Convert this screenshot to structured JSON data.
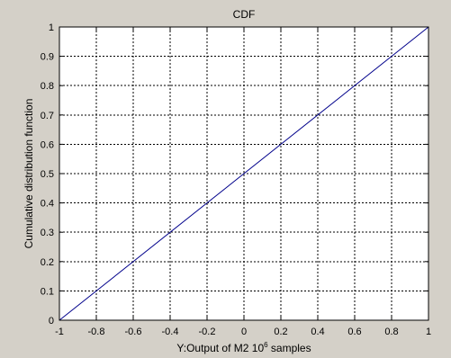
{
  "chart_data": {
    "type": "line",
    "title": "CDF",
    "xlabel_main": "Y:Output of M2 10",
    "xlabel_sup": "6",
    "xlabel_tail": " samples",
    "ylabel": "Cumulative distribution function",
    "xlim": [
      -1,
      1
    ],
    "ylim": [
      0,
      1
    ],
    "grid": true,
    "x_ticks": [
      -1,
      -0.8,
      -0.6,
      -0.4,
      -0.2,
      0,
      0.2,
      0.4,
      0.6,
      0.8,
      1
    ],
    "x_tick_labels": [
      "-1",
      "-0.8",
      "-0.6",
      "-0.4",
      "-0.2",
      "0",
      "0.2",
      "0.4",
      "0.6",
      "0.8",
      "1"
    ],
    "y_ticks": [
      0,
      0.1,
      0.2,
      0.3,
      0.4,
      0.5,
      0.6,
      0.7,
      0.8,
      0.9,
      1
    ],
    "y_tick_labels": [
      "0",
      "0.1",
      "0.2",
      "0.3",
      "0.4",
      "0.5",
      "0.6",
      "0.7",
      "0.8",
      "0.9",
      "1"
    ],
    "series": [
      {
        "x": [
          -1,
          1
        ],
        "y": [
          0,
          1
        ],
        "color": "#00008b"
      }
    ],
    "colors": {
      "figure_bg": "#d4d0c8",
      "axes_bg": "#ffffff",
      "grid": "#000000"
    }
  }
}
